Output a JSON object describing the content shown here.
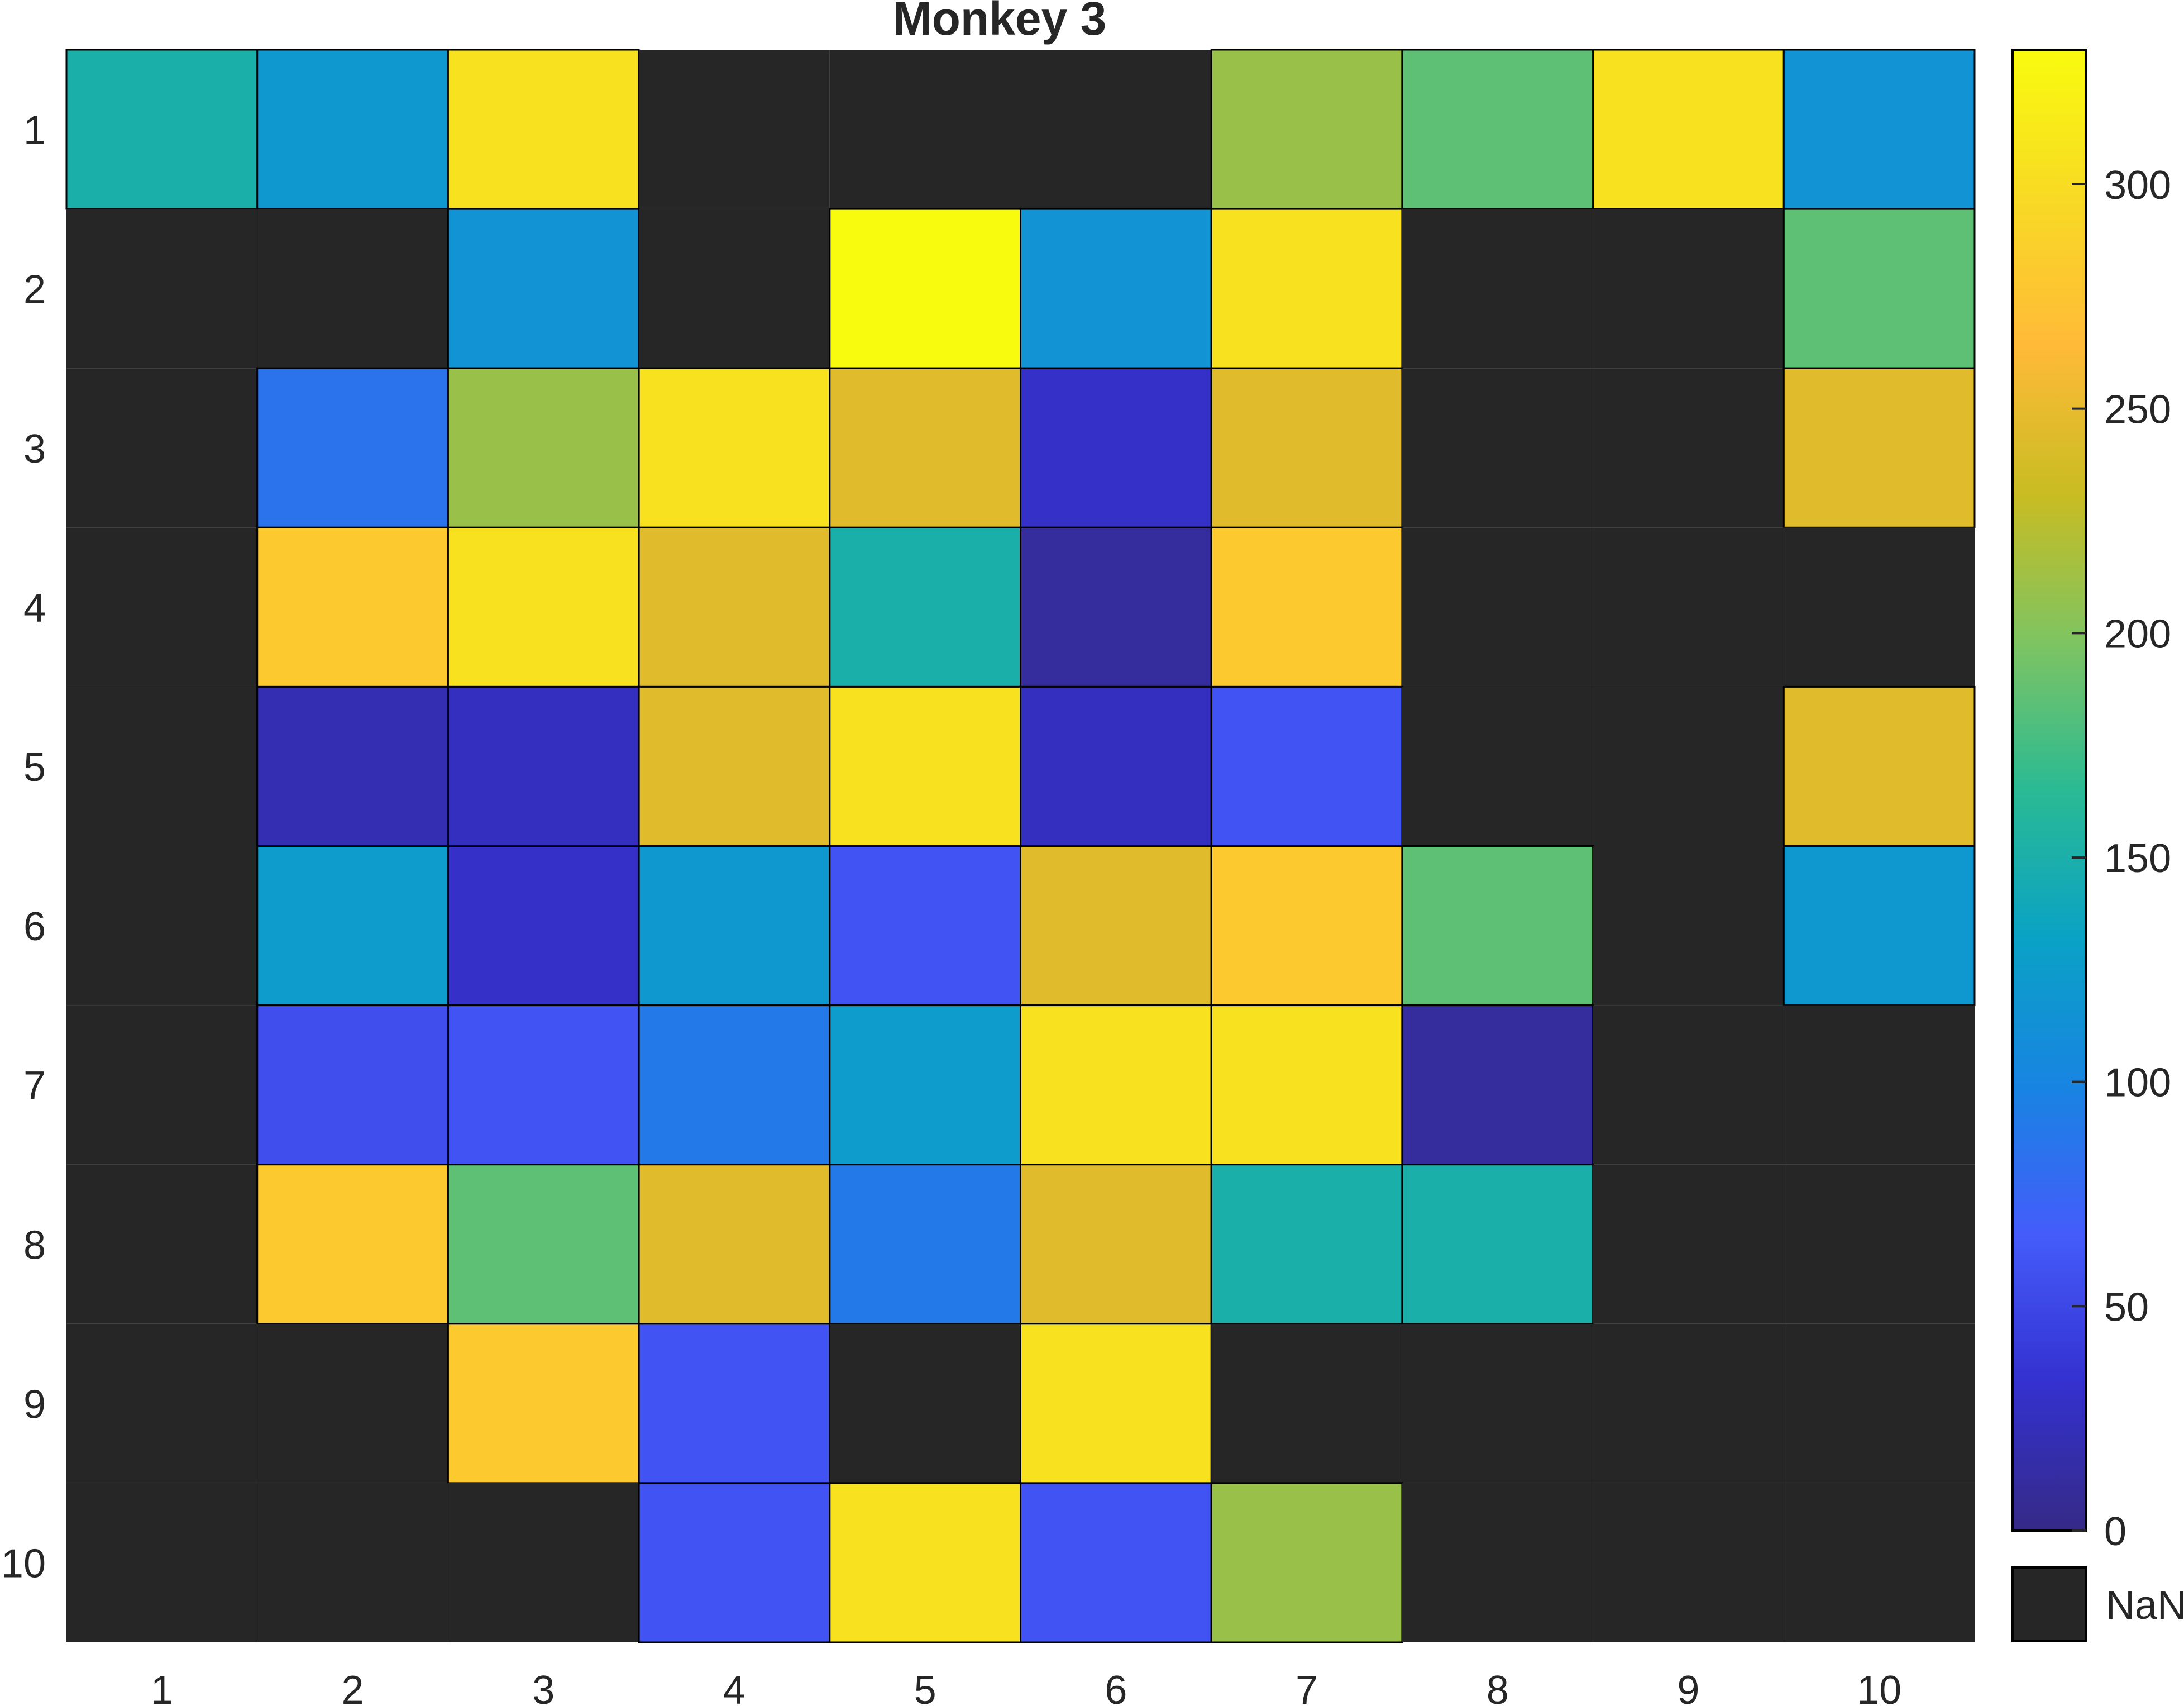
{
  "chart_data": {
    "type": "heatmap",
    "title": "Monkey 3",
    "x_labels": [
      "1",
      "2",
      "3",
      "4",
      "5",
      "6",
      "7",
      "8",
      "9",
      "10"
    ],
    "y_labels": [
      "1",
      "2",
      "3",
      "4",
      "5",
      "6",
      "7",
      "8",
      "9",
      "10"
    ],
    "values": [
      [
        150,
        120,
        305,
        null,
        null,
        null,
        210,
        185,
        305,
        115
      ],
      [
        null,
        null,
        115,
        null,
        330,
        115,
        305,
        null,
        null,
        185
      ],
      [
        null,
        85,
        210,
        305,
        245,
        30,
        245,
        null,
        null,
        245
      ],
      [
        null,
        280,
        305,
        245,
        150,
        10,
        280,
        null,
        null,
        null
      ],
      [
        null,
        20,
        25,
        245,
        305,
        25,
        60,
        null,
        null,
        245
      ],
      [
        null,
        125,
        30,
        120,
        60,
        245,
        280,
        185,
        null,
        120
      ],
      [
        null,
        55,
        60,
        90,
        125,
        305,
        305,
        10,
        null,
        null
      ],
      [
        null,
        280,
        185,
        245,
        90,
        245,
        150,
        150,
        null,
        null
      ],
      [
        null,
        null,
        280,
        60,
        null,
        305,
        null,
        null,
        null,
        null
      ],
      [
        null,
        null,
        null,
        60,
        305,
        60,
        210,
        null,
        null,
        null
      ]
    ],
    "colorbar": {
      "min": 0,
      "max": 330,
      "ticks": [
        "0",
        "50",
        "100",
        "150",
        "200",
        "250",
        "300"
      ],
      "nan_label": "NaN"
    },
    "nan_color": "#262626",
    "colors": {
      "colormap": "parula",
      "axis_text": "#262626",
      "cell_border": "#000000"
    }
  }
}
